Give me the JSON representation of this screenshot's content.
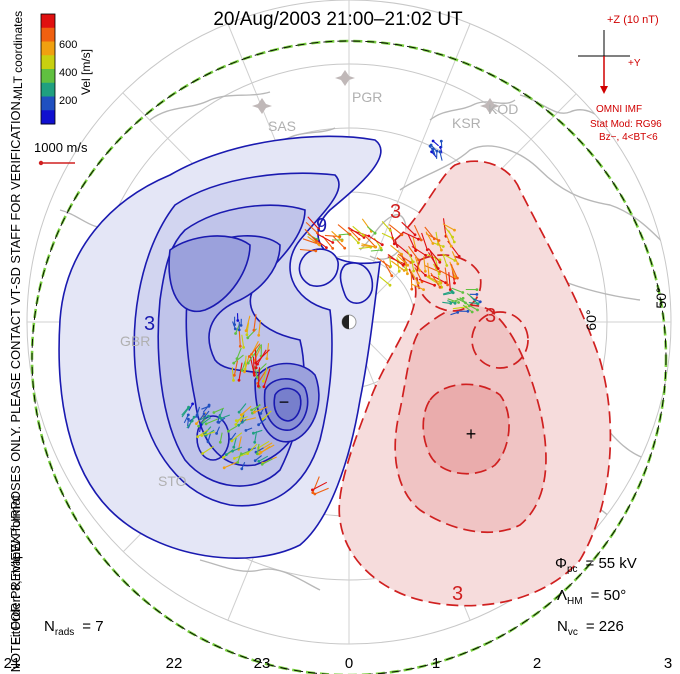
{
  "title": "20/Aug/2003 21:00–21:02 UT",
  "colorbar": {
    "label": "Vel [m/s]",
    "ticks": [
      "600",
      "400",
      "200"
    ],
    "colors": [
      "#e01010",
      "#f06010",
      "#f0a010",
      "#c8d010",
      "#60c040",
      "#20a080",
      "#2050c0",
      "#1010d0"
    ]
  },
  "coord_label": "MLT coordinates",
  "ref_vector": "1000 m/s",
  "side_note_1": "NOTE: FOR PREVIEW PURPOSES ONLY. PLEASE CONTACT VT-SD STAFF FOR VERIFICATION.",
  "side_note_2": "FitOrder: 8, mapEX format",
  "imf": {
    "z_label": "+Z (10 nT)",
    "y_label": "+Y",
    "source": "OMNI IMF",
    "stat_mod": "Stat Mod: RG96",
    "condition": "Bz−, 4<BT<6"
  },
  "stations": [
    "PGR",
    "KOD",
    "KSR",
    "SAS",
    "GBR",
    "STO"
  ],
  "lat_labels": [
    "60°",
    "50°"
  ],
  "contour_labels": [
    "3",
    "3",
    "3",
    "9",
    "3"
  ],
  "stats": {
    "phi_sym": "Φ",
    "phi_sub": "pc",
    "phi_val": "= 55 kV",
    "lambda_sym": "Λ",
    "lambda_sub": "HM",
    "lambda_val": "= 50°",
    "nvc_sym": "N",
    "nvc_sub": "vc",
    "nvc_val": "= 226",
    "nrads_sym": "N",
    "nrads_sub": "rads",
    "nrads_val": "= 7"
  },
  "mlt_axis": [
    "21",
    "22",
    "23",
    "0",
    "1",
    "2",
    "3"
  ],
  "extrema_marks": [
    "−",
    "+"
  ],
  "vector_colors": [
    "#1010d0",
    "#2050c0",
    "#20a080",
    "#60c040",
    "#c8d010",
    "#f0a010",
    "#f06010",
    "#e01010"
  ]
}
